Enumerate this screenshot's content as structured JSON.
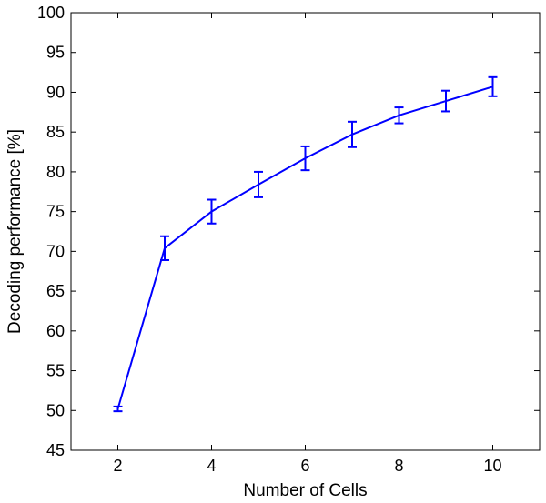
{
  "chart_data": {
    "type": "line",
    "title": "",
    "xlabel": "Number of Cells",
    "ylabel": "Decoding performance [%]",
    "xlim": [
      1,
      11
    ],
    "ylim": [
      45,
      100
    ],
    "x_ticks": [
      2,
      4,
      6,
      8,
      10
    ],
    "y_ticks": [
      45,
      50,
      55,
      60,
      65,
      70,
      75,
      80,
      85,
      90,
      95,
      100
    ],
    "grid": false,
    "legend": "none",
    "series": [
      {
        "x": [
          2,
          3,
          4,
          5,
          6,
          7,
          8,
          9,
          10
        ],
        "y": [
          50.2,
          70.4,
          75.0,
          78.4,
          81.7,
          84.7,
          87.1,
          88.9,
          90.7
        ],
        "error": [
          0.3,
          1.5,
          1.5,
          1.6,
          1.5,
          1.6,
          1.0,
          1.3,
          1.2
        ],
        "color": "#0000ff"
      }
    ]
  }
}
